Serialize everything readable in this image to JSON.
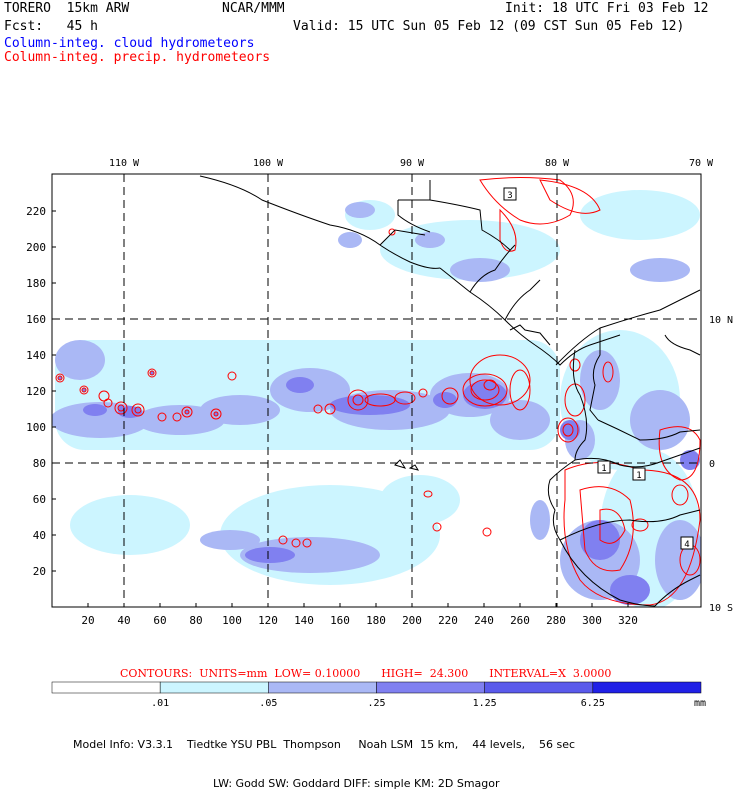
{
  "header": {
    "run": "TORERO  15km ARW",
    "org": "NCAR/MMM",
    "init": "Init: 18 UTC Fri 03 Feb 12",
    "fcst": "Fcst:   45 h",
    "valid": "Valid: 15 UTC Sun 05 Feb 12 (09 CST Sun 05 Feb 12)",
    "field_cloud": "Column-integ. cloud hydrometeors",
    "field_precip": "Column-integ. precip. hydrometeors"
  },
  "colors": {
    "cloud": "#0000ff",
    "precip": "#ff0000"
  },
  "map": {
    "lon_labels": [
      "110 W",
      "100 W",
      "90 W",
      "80 W",
      "70 W"
    ],
    "lat_labels": [
      "10 N",
      "0",
      "10 S"
    ],
    "x_ticks": [
      "20",
      "40",
      "60",
      "80",
      "100",
      "120",
      "140",
      "160",
      "180",
      "200",
      "220",
      "240",
      "260",
      "280",
      "300",
      "320"
    ],
    "y_ticks": [
      "220",
      "200",
      "180",
      "160",
      "140",
      "120",
      "100",
      "80",
      "60",
      "40",
      "20"
    ],
    "box_labels": [
      "3",
      "1",
      "1",
      "4"
    ]
  },
  "legend": {
    "contours": "CONTOURS:  UNITS=mm  LOW= 0.10000      HIGH=  24.300      INTERVAL=X  3.0000",
    "bin_labels": [
      ".01",
      ".05",
      ".25",
      "1.25",
      "6.25"
    ],
    "units": "mm",
    "bin_colors": [
      "#ffffff",
      "#ccf5ff",
      "#aab8f5",
      "#8080f0",
      "#5a5aeb",
      "#2020e6"
    ]
  },
  "model_info": {
    "line1": "Model Info: V3.3.1    Tiedtke YSU PBL  Thompson     Noah LSM  15 km,    44 levels,    56 sec",
    "line2": "LW: Godd SW: Goddard DIFF: simple KM: 2D Smagor"
  }
}
